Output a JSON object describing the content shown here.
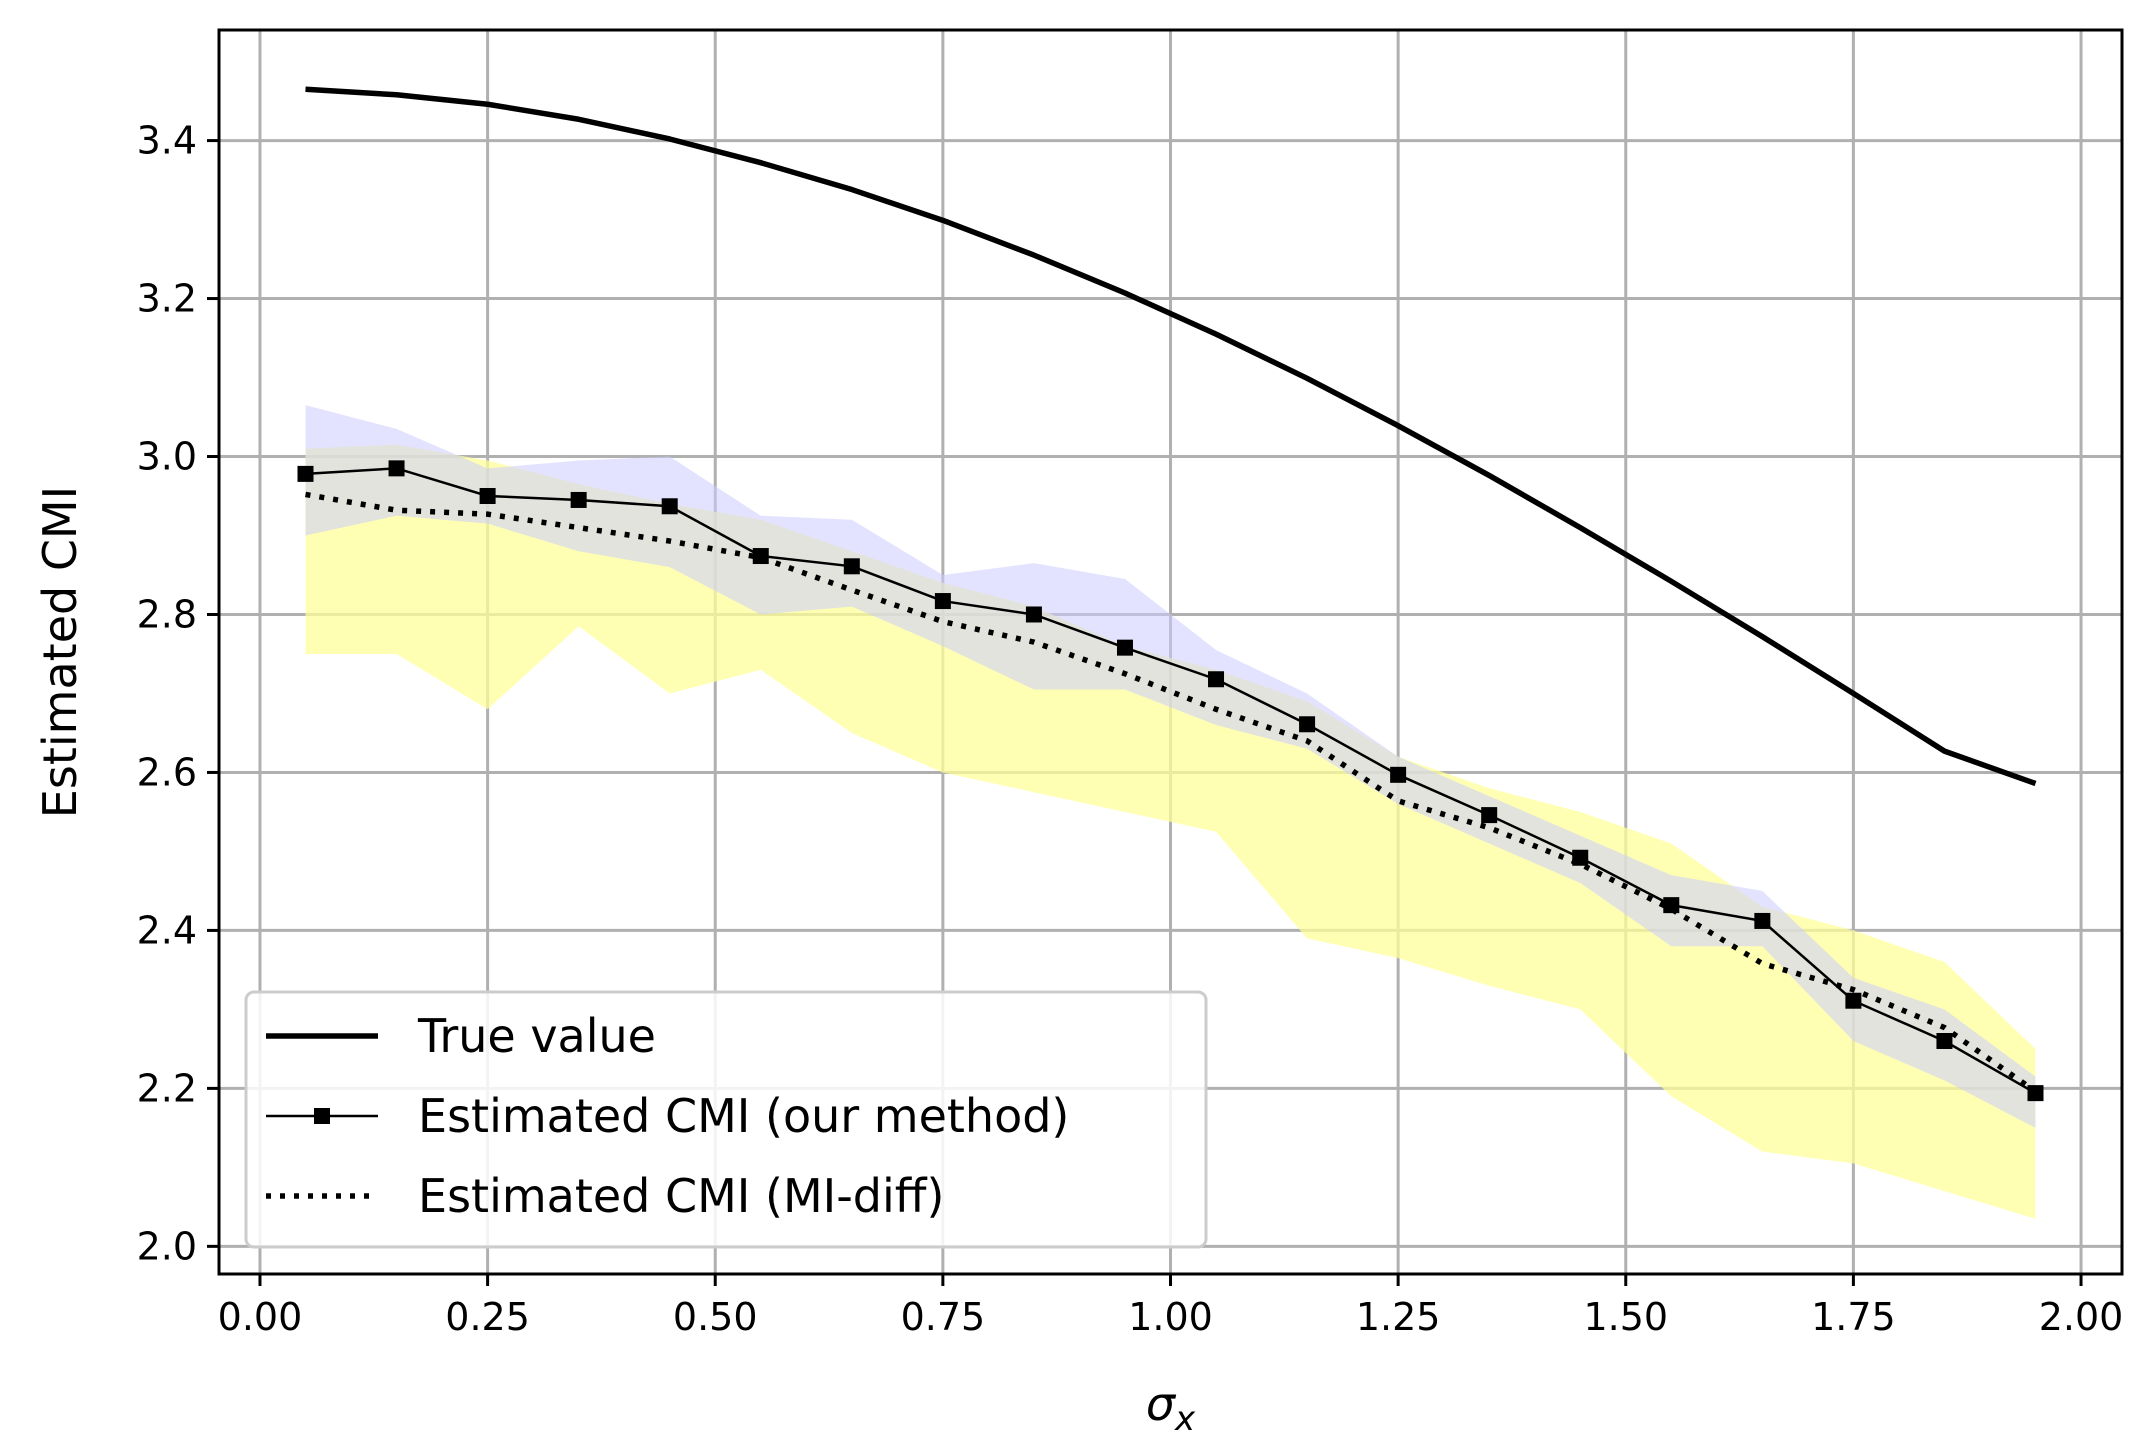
{
  "chart_data": {
    "type": "line",
    "title": "",
    "xlabel": "σ",
    "xlabel_subscript": "x",
    "ylabel": "Estimated CMI",
    "xlim": [
      -0.045,
      2.045
    ],
    "ylim": [
      1.965,
      3.54
    ],
    "xticks": [
      0.0,
      0.25,
      0.5,
      0.75,
      1.0,
      1.25,
      1.5,
      1.75,
      2.0
    ],
    "xtick_labels": [
      "0.00",
      "0.25",
      "0.50",
      "0.75",
      "1.00",
      "1.25",
      "1.50",
      "1.75",
      "2.00"
    ],
    "yticks": [
      2.0,
      2.2,
      2.4,
      2.6,
      2.8,
      3.0,
      3.2,
      3.4
    ],
    "ytick_labels": [
      "2.0",
      "2.2",
      "2.4",
      "2.6",
      "2.8",
      "3.0",
      "3.2",
      "3.4"
    ],
    "grid": true,
    "legend_position": "lower-left",
    "x": [
      0.05,
      0.15,
      0.25,
      0.35,
      0.45,
      0.55,
      0.65,
      0.75,
      0.85,
      0.95,
      1.05,
      1.15,
      1.25,
      1.35,
      1.45,
      1.55,
      1.65,
      1.75,
      1.85,
      1.95
    ],
    "true_value": {
      "x": [
        0.05,
        0.15,
        0.25,
        0.35,
        0.45,
        0.55,
        0.65,
        0.75,
        0.85,
        0.95,
        1.05,
        1.15,
        1.25,
        1.35,
        1.45,
        1.55,
        1.65,
        1.75,
        1.85,
        1.95
      ],
      "values": [
        3.465,
        3.458,
        3.446,
        3.427,
        3.402,
        3.372,
        3.338,
        3.299,
        3.255,
        3.207,
        3.155,
        3.099,
        3.039,
        2.976,
        2.91,
        2.842,
        2.772,
        2.7,
        2.627,
        2.586
      ]
    },
    "series": [
      {
        "name": "True value",
        "style": "solid-thick",
        "color": "#000000"
      },
      {
        "name": "Estimated CMI (our method)",
        "style": "line-square-markers",
        "color": "#000000",
        "values": [
          2.978,
          2.985,
          2.95,
          2.945,
          2.937,
          2.874,
          2.861,
          2.817,
          2.8,
          2.758,
          2.718,
          2.661,
          2.597,
          2.546,
          2.492,
          2.432,
          2.412,
          2.311,
          2.26,
          2.194
        ],
        "band_color": "#ccccff",
        "band_lower": [
          2.9,
          2.925,
          2.915,
          2.88,
          2.86,
          2.8,
          2.81,
          2.76,
          2.705,
          2.705,
          2.66,
          2.63,
          2.56,
          2.51,
          2.46,
          2.38,
          2.38,
          2.26,
          2.21,
          2.15
        ],
        "band_upper": [
          3.065,
          3.035,
          2.985,
          2.995,
          3.0,
          2.925,
          2.92,
          2.85,
          2.865,
          2.845,
          2.755,
          2.7,
          2.62,
          2.57,
          2.52,
          2.47,
          2.45,
          2.34,
          2.3,
          2.215
        ]
      },
      {
        "name": "Estimated CMI (MI-diff)",
        "style": "dotted",
        "color": "#000000",
        "values": [
          2.952,
          2.932,
          2.927,
          2.91,
          2.893,
          2.872,
          2.831,
          2.791,
          2.765,
          2.725,
          2.68,
          2.64,
          2.564,
          2.53,
          2.484,
          2.427,
          2.358,
          2.325,
          2.277,
          2.196
        ],
        "band_color": "#ffff99",
        "band_lower": [
          2.75,
          2.75,
          2.68,
          2.785,
          2.7,
          2.73,
          2.65,
          2.6,
          2.575,
          2.55,
          2.525,
          2.39,
          2.365,
          2.33,
          2.3,
          2.19,
          2.12,
          2.105,
          2.07,
          2.035
        ],
        "band_upper": [
          3.01,
          3.015,
          2.995,
          2.965,
          2.94,
          2.92,
          2.88,
          2.84,
          2.81,
          2.76,
          2.73,
          2.69,
          2.62,
          2.58,
          2.55,
          2.51,
          2.43,
          2.4,
          2.36,
          2.25
        ]
      }
    ]
  }
}
